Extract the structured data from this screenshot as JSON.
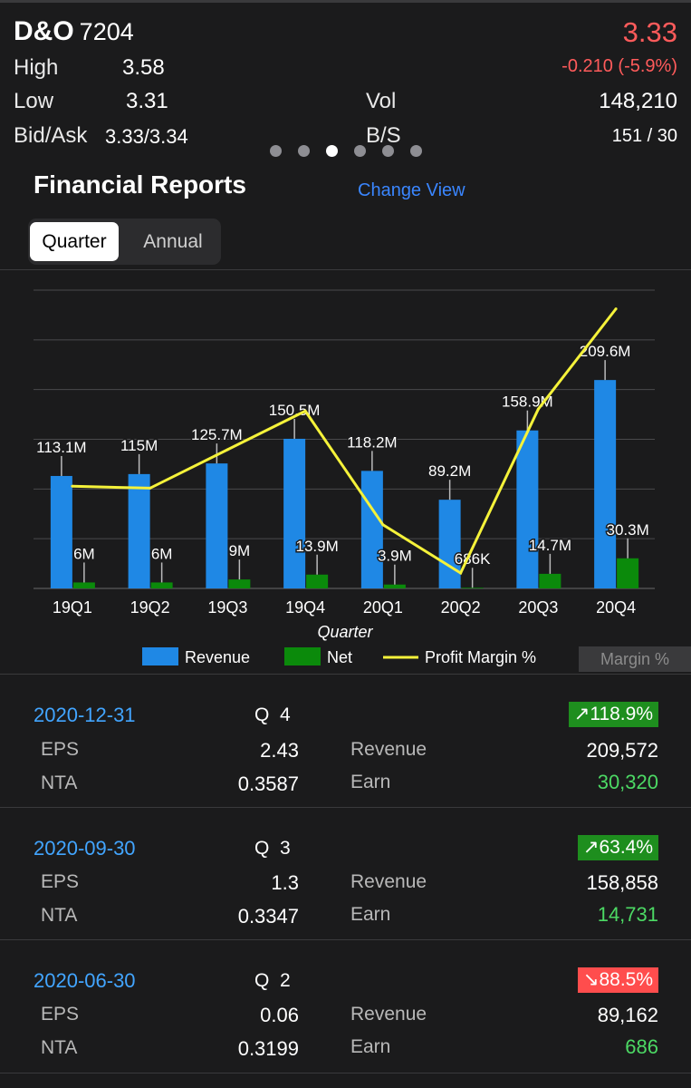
{
  "header": {
    "name": "D&O",
    "code": "7204",
    "price": "3.33",
    "change": "-0.210 (-5.9%)",
    "high_label": "High",
    "high": "3.58",
    "low_label": "Low",
    "low": "3.31",
    "vol_label": "Vol",
    "vol": "148,210",
    "bidask_label": "Bid/Ask",
    "bidask": "3.33/3.34",
    "bs_label": "B/S",
    "bs": "151 / 30"
  },
  "pager": {
    "count": 6,
    "active": 2
  },
  "section": {
    "title": "Financial Reports",
    "change_view": "Change View",
    "tabs": [
      "Quarter",
      "Annual"
    ],
    "selected_tab": "Quarter",
    "margin_button": "Margin %"
  },
  "chart_data": {
    "type": "bar",
    "categories": [
      "19Q1",
      "19Q2",
      "19Q3",
      "19Q4",
      "20Q1",
      "20Q2",
      "20Q3",
      "20Q4"
    ],
    "xlabel": "Quarter",
    "ylim": [
      0,
      300
    ],
    "series": [
      {
        "name": "Revenue",
        "color": "#1f88e5",
        "values": [
          113.1,
          115,
          125.7,
          150.5,
          118.2,
          89.2,
          158.9,
          209.6
        ],
        "labels": [
          "113.1M",
          "115M",
          "125.7M",
          "150.5M",
          "118.2M",
          "89.2M",
          "158.9M",
          "209.6M"
        ]
      },
      {
        "name": "Net",
        "color": "#0b8a0b",
        "values": [
          6,
          6,
          9,
          13.9,
          3.9,
          0.686,
          14.7,
          30.3
        ],
        "labels": [
          "6M",
          "6M",
          "9M",
          "13.9M",
          "3.9M",
          "686K",
          "14.7M",
          "30.3M"
        ]
      },
      {
        "name": "Profit Margin %",
        "type": "line",
        "color": "#f5f23a",
        "values": [
          5.3,
          5.2,
          7.2,
          9.2,
          3.3,
          0.8,
          9.3,
          14.5
        ]
      }
    ],
    "grid": true,
    "legend": "bottom"
  },
  "reports": [
    {
      "date": "2020-12-31",
      "quarter": "Q  4",
      "badge": "↗118.9%",
      "direction": "up",
      "eps_label": "EPS",
      "eps": "2.43",
      "nta_label": "NTA",
      "nta": "0.3587",
      "revenue_label": "Revenue",
      "revenue": "209,572",
      "earn_label": "Earn",
      "earn": "30,320"
    },
    {
      "date": "2020-09-30",
      "quarter": "Q  3",
      "badge": "↗63.4%",
      "direction": "up",
      "eps_label": "EPS",
      "eps": "1.3",
      "nta_label": "NTA",
      "nta": "0.3347",
      "revenue_label": "Revenue",
      "revenue": "158,858",
      "earn_label": "Earn",
      "earn": "14,731"
    },
    {
      "date": "2020-06-30",
      "quarter": "Q  2",
      "badge": "↘88.5%",
      "direction": "down",
      "eps_label": "EPS",
      "eps": "0.06",
      "nta_label": "NTA",
      "nta": "0.3199",
      "revenue_label": "Revenue",
      "revenue": "89,162",
      "earn_label": "Earn",
      "earn": "686"
    }
  ]
}
